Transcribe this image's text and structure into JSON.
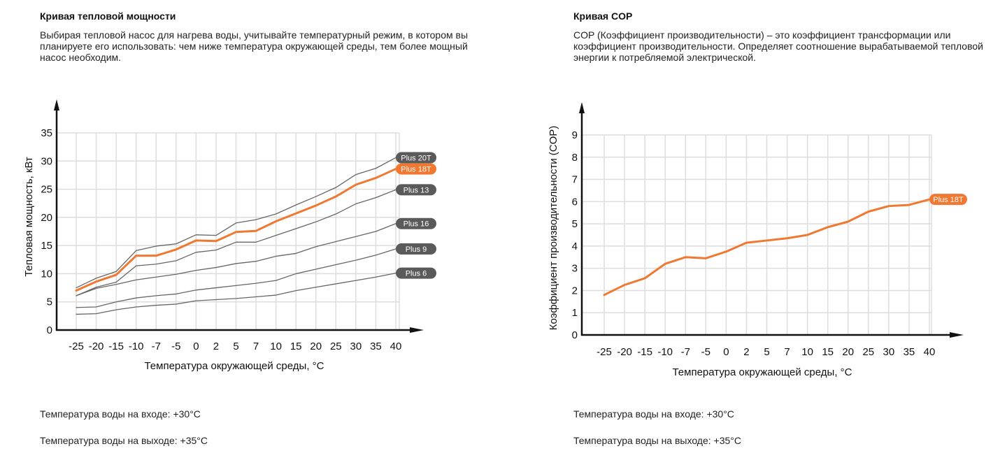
{
  "left_panel": {
    "title": "Кривая тепловой мощности",
    "description": "Выбирая тепловой насос для нагрева воды, учитывайте температурный режим, в котором вы планируете его использовать: чем ниже температура окружающей среды, тем более мощный насос необходим.",
    "note_inlet": "Температура воды на входе: +30°C",
    "note_outlet": "Температура воды на выходе: +35°C"
  },
  "right_panel": {
    "title": "Кривая COP",
    "description": "COP (Коэффициент производительности) – это коэффициент трансформации или коэффициент производительности. Определяет соотношение вырабатываемой тепловой энергии к потребляемой электрической.",
    "note_inlet": "Температура воды на входе: +30°C",
    "note_outlet": "Температура воды на выходе: +35°C"
  },
  "colors": {
    "accent": "#f07830",
    "series_gray": "#666666",
    "tag_gray": "#5a5a5a",
    "grid": "#dddddd",
    "axis": "#111111"
  },
  "chart_data": [
    {
      "type": "line",
      "title": "Кривая тепловой мощности",
      "xlabel": "Температура окружающей среды, °C",
      "ylabel": "Тепловая мощность, кВт",
      "categories": [
        "-25",
        "-20",
        "-15",
        "-10",
        "-7",
        "-5",
        "0",
        "2",
        "5",
        "7",
        "10",
        "15",
        "20",
        "25",
        "30",
        "35",
        "40"
      ],
      "yticks": [
        "0",
        "5",
        "10",
        "15",
        "20",
        "25",
        "30",
        "35"
      ],
      "ylim": [
        0,
        35
      ],
      "grid": true,
      "legend": "end-of-line tags",
      "series": [
        {
          "name": "Plus 20T",
          "highlight": false,
          "values": [
            7.5,
            9.2,
            10.4,
            14.1,
            14.9,
            15.3,
            16.9,
            16.8,
            19.0,
            19.6,
            20.6,
            22.2,
            23.7,
            25.3,
            27.6,
            28.7,
            30.6
          ]
        },
        {
          "name": "Plus 18T",
          "highlight": true,
          "values": [
            7.0,
            8.6,
            9.8,
            13.2,
            13.2,
            14.3,
            15.9,
            15.8,
            17.4,
            17.6,
            19.3,
            20.7,
            22.1,
            23.7,
            25.8,
            27.0,
            28.6
          ]
        },
        {
          "name": "Plus 13",
          "highlight": false,
          "values": [
            6.1,
            7.6,
            8.5,
            11.4,
            11.7,
            12.3,
            13.8,
            14.2,
            15.6,
            15.6,
            16.8,
            18.0,
            19.2,
            20.6,
            22.4,
            23.5,
            24.9
          ]
        },
        {
          "name": "Plus 16",
          "highlight": false,
          "values": [
            6.1,
            7.4,
            8.1,
            8.9,
            9.4,
            9.9,
            10.6,
            11.1,
            11.8,
            12.2,
            13.1,
            13.6,
            14.8,
            15.7,
            16.6,
            17.5,
            18.9
          ]
        },
        {
          "name": "Plus 9",
          "highlight": false,
          "values": [
            4.0,
            4.1,
            5.0,
            5.7,
            6.1,
            6.4,
            7.1,
            7.5,
            7.9,
            8.3,
            8.8,
            10.0,
            10.8,
            11.6,
            12.4,
            13.3,
            14.4
          ]
        },
        {
          "name": "Plus 6",
          "highlight": false,
          "values": [
            2.8,
            2.9,
            3.6,
            4.1,
            4.4,
            4.6,
            5.2,
            5.4,
            5.6,
            5.9,
            6.2,
            7.0,
            7.6,
            8.2,
            8.8,
            9.4,
            10.1
          ]
        }
      ]
    },
    {
      "type": "line",
      "title": "Кривая COP",
      "xlabel": "Температура окружающей среды, °C",
      "ylabel": "Коэффициент производительности (COP)",
      "categories": [
        "-25",
        "-20",
        "-15",
        "-10",
        "-7",
        "-5",
        "0",
        "2",
        "5",
        "7",
        "10",
        "15",
        "20",
        "25",
        "30",
        "35",
        "40"
      ],
      "yticks": [
        "0",
        "1",
        "2",
        "3",
        "4",
        "5",
        "6",
        "7",
        "8",
        "9"
      ],
      "ylim": [
        0,
        9
      ],
      "grid": true,
      "legend": "end-of-line tag",
      "series": [
        {
          "name": "Plus 18T",
          "highlight": true,
          "values": [
            1.8,
            2.25,
            2.55,
            3.2,
            3.5,
            3.45,
            3.75,
            4.15,
            4.25,
            4.35,
            4.5,
            4.85,
            5.1,
            5.55,
            5.8,
            5.85,
            6.1
          ]
        }
      ]
    }
  ]
}
